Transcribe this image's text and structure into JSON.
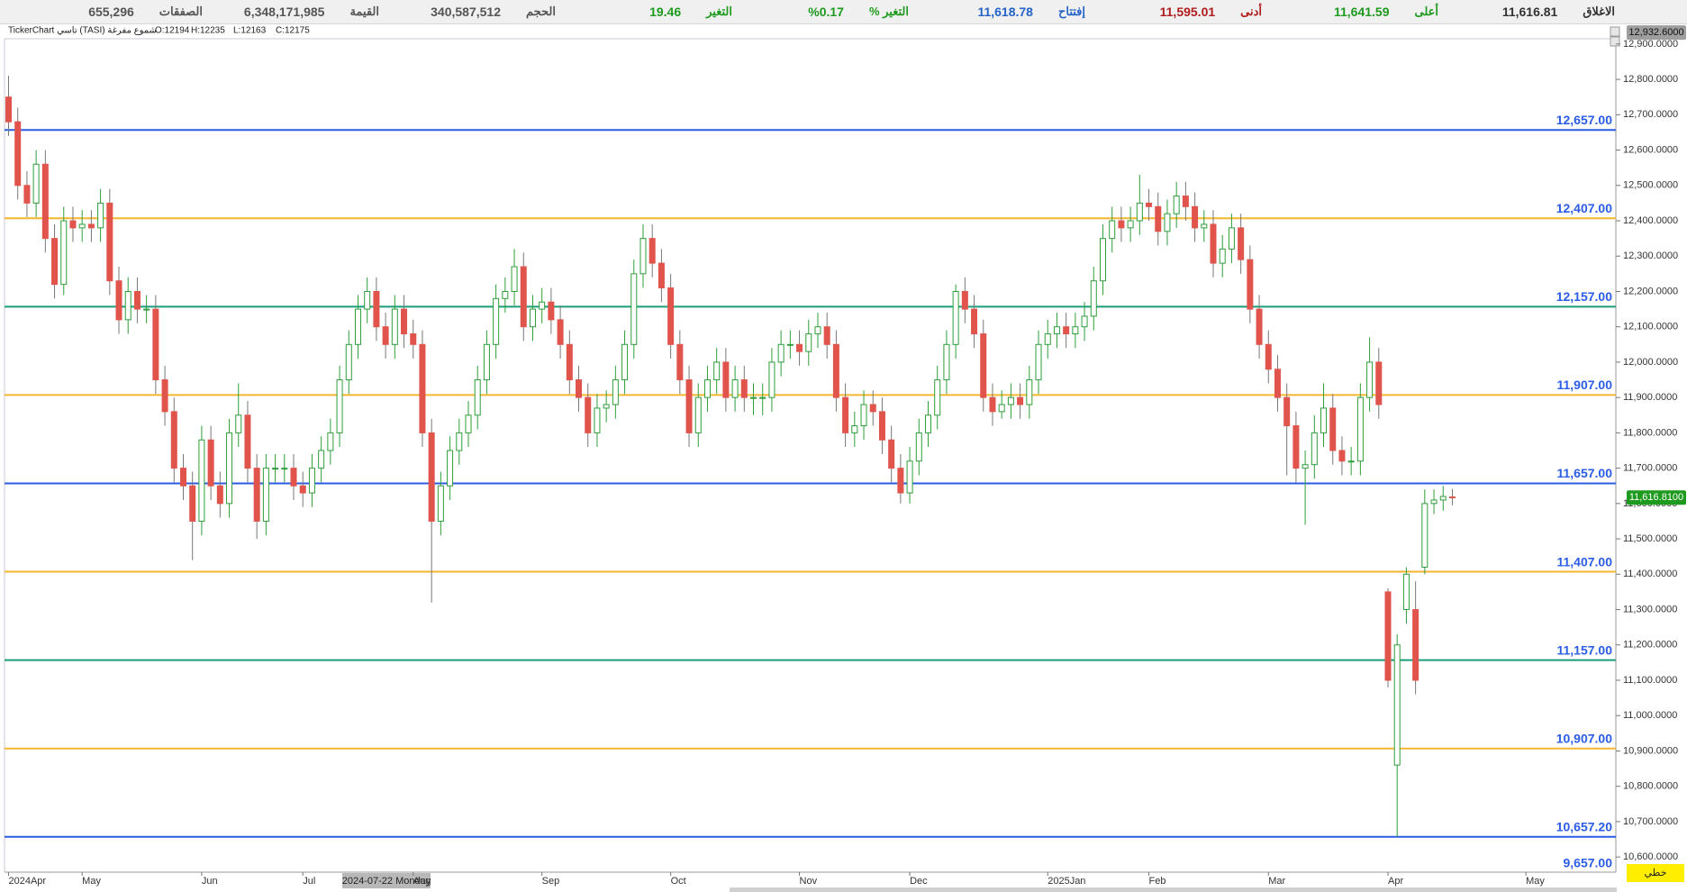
{
  "header": {
    "items": [
      {
        "label": "الاغلاق",
        "value": "11,616.81",
        "color": "#333333"
      },
      {
        "label": "أعلى",
        "value": "11,641.59",
        "color": "#1e9a1e"
      },
      {
        "label": "أدنى",
        "value": "11,595.01",
        "color": "#b01c1c"
      },
      {
        "label": "إفتتاح",
        "value": "11,618.78",
        "color": "#2463c8"
      },
      {
        "label": "التغير %",
        "value": "%0.17",
        "color": "#1e9a1e"
      },
      {
        "label": "التغير",
        "value": "19.46",
        "color": "#1e9a1e"
      },
      {
        "label": "الحجم",
        "value": "340,587,512",
        "color": "#555555"
      },
      {
        "label": "القيمة",
        "value": "6,348,171,985",
        "color": "#555555"
      },
      {
        "label": "الصفقات",
        "value": "655,296",
        "color": "#555555"
      }
    ]
  },
  "info": {
    "source": "TickerChart تاسي (TASI) شموع مفرغة",
    "ohlc": [
      "O:12194",
      "H:12235",
      "L:12163",
      "C:12175"
    ]
  },
  "chart_data": {
    "type": "candlestick",
    "up_color": "#2e9e3a",
    "down_color": "#e0544c",
    "ylim": [
      10557,
      12915
    ],
    "yticks": [
      {
        "value": 10600,
        "label": "10,600.0000"
      },
      {
        "value": 10700,
        "label": "10,700.0000"
      },
      {
        "value": 10800,
        "label": "10,800.0000"
      },
      {
        "value": 10900,
        "label": "10,900.0000"
      },
      {
        "value": 11000,
        "label": "11,000.0000"
      },
      {
        "value": 11100,
        "label": "11,100.0000"
      },
      {
        "value": 11200,
        "label": "11,200.0000"
      },
      {
        "value": 11300,
        "label": "11,300.0000"
      },
      {
        "value": 11400,
        "label": "11,400.0000"
      },
      {
        "value": 11500,
        "label": "11,500.0000"
      },
      {
        "value": 11600,
        "label": "11,600.0000"
      },
      {
        "value": 11700,
        "label": "11,700.0000"
      },
      {
        "value": 11800,
        "label": "11,800.0000"
      },
      {
        "value": 11900,
        "label": "11,900.0000"
      },
      {
        "value": 12000,
        "label": "12,000.0000"
      },
      {
        "value": 12100,
        "label": "12,100.0000"
      },
      {
        "value": 12200,
        "label": "12,200.0000"
      },
      {
        "value": 12300,
        "label": "12,300.0000"
      },
      {
        "value": 12400,
        "label": "12,400.0000"
      },
      {
        "value": 12500,
        "label": "12,500.0000"
      },
      {
        "value": 12600,
        "label": "12,600.0000"
      },
      {
        "value": 12700,
        "label": "12,700.0000"
      },
      {
        "value": 12800,
        "label": "12,800.0000"
      },
      {
        "value": 12900,
        "label": "12,900.0000"
      }
    ],
    "top_price": {
      "value": 12932.6,
      "label": "12,932.6000"
    },
    "last_price": {
      "value": 11616.81,
      "label": "11,616.8100"
    },
    "levels": [
      {
        "value": 12657,
        "label": "12,657.00",
        "color": "#2b5ce6"
      },
      {
        "value": 12407,
        "label": "12,407.00",
        "color": "#f7b630"
      },
      {
        "value": 12157,
        "label": "12,157.00",
        "color": "#1a9e7a"
      },
      {
        "value": 11907,
        "label": "11,907.00",
        "color": "#f7b630"
      },
      {
        "value": 11657,
        "label": "11,657.00",
        "color": "#2b5ce6"
      },
      {
        "value": 11407,
        "label": "11,407.00",
        "color": "#f7b630"
      },
      {
        "value": 11157,
        "label": "11,157.00",
        "color": "#1a9e7a"
      },
      {
        "value": 10907,
        "label": "10,907.00",
        "color": "#f7b630"
      },
      {
        "value": 10657.2,
        "label": "10,657.20",
        "color": "#2b5ce6"
      }
    ],
    "bottom_level_label": "9,657.00",
    "mode_label": "خطي",
    "crosshair_label": "2024-07-22 Monday",
    "categories": [
      "2024Apr",
      null,
      null,
      null,
      null,
      null,
      null,
      null,
      "May",
      null,
      null,
      null,
      null,
      null,
      null,
      null,
      null,
      null,
      null,
      null,
      null,
      "Jun",
      null,
      null,
      null,
      null,
      null,
      null,
      null,
      null,
      null,
      null,
      "Jul",
      null,
      null,
      null,
      null,
      null,
      null,
      null,
      null,
      null,
      null,
      null,
      "Aug",
      null,
      null,
      null,
      null,
      null,
      null,
      null,
      null,
      null,
      null,
      null,
      null,
      null,
      "Sep",
      null,
      null,
      null,
      null,
      null,
      null,
      null,
      null,
      null,
      null,
      null,
      null,
      null,
      "Oct",
      null,
      null,
      null,
      null,
      null,
      null,
      null,
      null,
      null,
      null,
      null,
      null,
      null,
      "Nov",
      null,
      null,
      null,
      null,
      null,
      null,
      null,
      null,
      null,
      null,
      null,
      "Dec",
      null,
      null,
      null,
      null,
      null,
      null,
      null,
      null,
      null,
      null,
      null,
      null,
      null,
      null,
      "2025Jan",
      null,
      null,
      null,
      null,
      null,
      null,
      null,
      null,
      null,
      null,
      "Feb",
      null,
      null,
      null,
      null,
      null,
      null,
      null,
      null,
      null,
      null,
      null,
      null,
      "Mar",
      null,
      null,
      null,
      null,
      null,
      null,
      null,
      null,
      null,
      null,
      null,
      null,
      "Apr",
      null,
      null,
      null,
      null,
      null,
      null,
      null,
      null,
      null,
      null,
      null,
      null,
      null,
      null,
      "May"
    ],
    "open": [
      12750,
      12680,
      12500,
      12450,
      12560,
      12350,
      12220,
      12400,
      12380,
      12390,
      12380,
      12450,
      12230,
      12120,
      12200,
      12150,
      12150,
      11950,
      11860,
      11700,
      11650,
      11550,
      11780,
      11650,
      11600,
      11800,
      11850,
      11700,
      11550,
      11700,
      11700,
      11700,
      11650,
      11630,
      11700,
      11750,
      11800,
      11950,
      12050,
      12150,
      12200,
      12100,
      12050,
      12150,
      12080,
      12050,
      11800,
      11550,
      11650,
      11750,
      11800,
      11850,
      11950,
      12050,
      12180,
      12200,
      12270,
      12100,
      12150,
      12170,
      12120,
      12050,
      11950,
      11900,
      11800,
      11870,
      11880,
      11950,
      12050,
      12250,
      12350,
      12280,
      12210,
      12050,
      11950,
      11800,
      11900,
      11950,
      12000,
      11900,
      11950,
      11900,
      11900,
      11900,
      12000,
      12050,
      12050,
      12030,
      12080,
      12100,
      12050,
      11900,
      11800,
      11820,
      11880,
      11860,
      11780,
      11700,
      11630,
      11720,
      11800,
      11850,
      11950,
      12050,
      12200,
      12150,
      12080,
      11900,
      11860,
      11880,
      11900,
      11880,
      11950,
      12050,
      12080,
      12100,
      12080,
      12100,
      12130,
      12230,
      12350,
      12400,
      12380,
      12400,
      12450,
      12440,
      12370,
      12420,
      12470,
      12440,
      12380,
      12390,
      12280,
      12320,
      12380,
      12290,
      12150,
      12050,
      11980,
      11900,
      11820,
      11700,
      11710,
      11800,
      11870,
      11750,
      11720,
      11720,
      11900,
      12000,
      11350,
      10860,
      11300,
      11300,
      11420,
      11600,
      11610,
      11618.78,
      null,
      null,
      null,
      null,
      null,
      null,
      null,
      null
    ],
    "high": [
      12810,
      12720,
      12540,
      12600,
      12600,
      12390,
      12440,
      12440,
      12430,
      12430,
      12490,
      12490,
      12270,
      12240,
      12240,
      12190,
      12190,
      11990,
      11900,
      11740,
      11690,
      11820,
      11820,
      11690,
      11840,
      11940,
      11890,
      11740,
      11740,
      11740,
      11740,
      11740,
      11690,
      11740,
      11790,
      11840,
      11990,
      12090,
      12190,
      12240,
      12240,
      12140,
      12190,
      12190,
      12120,
      12090,
      11840,
      11690,
      11790,
      11840,
      11890,
      11990,
      12090,
      12220,
      12240,
      12320,
      12310,
      12190,
      12210,
      12210,
      12160,
      12090,
      11990,
      11940,
      11910,
      11920,
      11990,
      12090,
      12290,
      12390,
      12390,
      12320,
      12250,
      12090,
      11990,
      11940,
      11990,
      12040,
      12040,
      11990,
      11990,
      11940,
      11940,
      12040,
      12090,
      12090,
      12090,
      12120,
      12140,
      12140,
      12090,
      11940,
      11860,
      11920,
      11920,
      11900,
      11820,
      11740,
      11760,
      11840,
      11890,
      11990,
      12090,
      12220,
      12240,
      12190,
      12120,
      11940,
      11920,
      11940,
      11940,
      11990,
      12090,
      12120,
      12140,
      12140,
      12140,
      12170,
      12270,
      12390,
      12440,
      12440,
      12440,
      12530,
      12490,
      12480,
      12460,
      12510,
      12510,
      12480,
      12430,
      12430,
      12360,
      12420,
      12420,
      12330,
      12190,
      12090,
      12020,
      11940,
      11860,
      11750,
      11850,
      11940,
      11910,
      11790,
      11760,
      11940,
      12070,
      12040,
      11360,
      11230,
      11420,
      11380,
      11640,
      11640,
      11650,
      11641.59,
      null,
      null,
      null,
      null,
      null,
      null,
      null,
      null
    ],
    "low": [
      12640,
      12460,
      12410,
      12410,
      12310,
      12180,
      12190,
      12340,
      12340,
      12340,
      12340,
      12190,
      12080,
      12080,
      12110,
      12110,
      11910,
      11820,
      11660,
      11610,
      11440,
      11510,
      11610,
      11560,
      11560,
      11760,
      11660,
      11500,
      11510,
      11660,
      11660,
      11610,
      11590,
      11590,
      11660,
      11710,
      11760,
      11910,
      12010,
      12110,
      12060,
      12010,
      12010,
      12040,
      12010,
      11760,
      11320,
      11510,
      11610,
      11710,
      11760,
      11810,
      11910,
      12010,
      12140,
      12160,
      12060,
      12060,
      12110,
      12080,
      12010,
      11910,
      11860,
      11760,
      11760,
      11830,
      11840,
      11910,
      12010,
      12210,
      12240,
      12170,
      12010,
      11910,
      11760,
      11760,
      11860,
      11910,
      11860,
      11860,
      11860,
      11850,
      11850,
      11860,
      11960,
      12010,
      11990,
      11990,
      12040,
      12010,
      11860,
      11760,
      11760,
      11780,
      11820,
      11740,
      11660,
      11600,
      11600,
      11680,
      11760,
      11810,
      11910,
      12010,
      12110,
      12040,
      11860,
      11820,
      11840,
      11840,
      11840,
      11840,
      11910,
      12010,
      12040,
      12040,
      12040,
      12060,
      12090,
      12190,
      12310,
      12340,
      12340,
      12360,
      12400,
      12330,
      12330,
      12380,
      12400,
      12340,
      12340,
      12240,
      12240,
      12280,
      12250,
      12110,
      12010,
      11940,
      11860,
      11680,
      11660,
      11540,
      11670,
      11760,
      11710,
      11680,
      11680,
      11680,
      11860,
      11840,
      11080,
      10657.2,
      11260,
      11060,
      11400,
      11570,
      11580,
      11595.01,
      null,
      null,
      null,
      null,
      null,
      null,
      null,
      null
    ],
    "close": [
      12680,
      12500,
      12450,
      12560,
      12350,
      12220,
      12400,
      12380,
      12390,
      12380,
      12450,
      12230,
      12120,
      12200,
      12150,
      12150,
      11950,
      11860,
      11700,
      11650,
      11550,
      11780,
      11650,
      11600,
      11800,
      11850,
      11700,
      11550,
      11700,
      11700,
      11700,
      11650,
      11630,
      11700,
      11750,
      11800,
      11950,
      12050,
      12150,
      12200,
      12100,
      12050,
      12150,
      12080,
      12050,
      11800,
      11550,
      11650,
      11750,
      11800,
      11850,
      11950,
      12050,
      12180,
      12200,
      12270,
      12100,
      12150,
      12170,
      12120,
      12050,
      11950,
      11900,
      11800,
      11870,
      11880,
      11950,
      12050,
      12250,
      12350,
      12280,
      12210,
      12050,
      11950,
      11800,
      11900,
      11950,
      12000,
      11900,
      11950,
      11900,
      11900,
      11900,
      12000,
      12050,
      12050,
      12030,
      12080,
      12100,
      12050,
      11900,
      11800,
      11820,
      11880,
      11860,
      11780,
      11700,
      11630,
      11720,
      11800,
      11850,
      11950,
      12050,
      12200,
      12150,
      12080,
      11900,
      11860,
      11880,
      11900,
      11880,
      11950,
      12050,
      12080,
      12100,
      12080,
      12100,
      12130,
      12230,
      12350,
      12400,
      12380,
      12400,
      12450,
      12440,
      12370,
      12420,
      12470,
      12440,
      12380,
      12390,
      12280,
      12320,
      12380,
      12290,
      12150,
      12050,
      11980,
      11900,
      11820,
      11700,
      11710,
      11800,
      11870,
      11750,
      11720,
      11720,
      11900,
      12000,
      11880,
      11100,
      11200,
      11400,
      11100,
      11600,
      11610,
      11620,
      11616.81,
      null,
      null,
      null,
      null,
      null,
      null,
      null,
      null
    ]
  }
}
